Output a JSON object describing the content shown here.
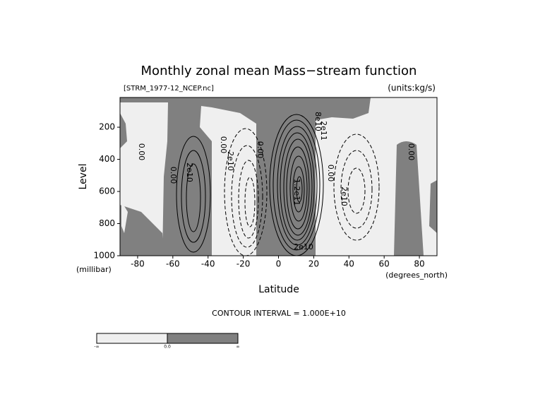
{
  "chart_data": {
    "type": "contour",
    "title": "Monthly zonal mean Mass−stream function",
    "subtitle_left": "[STRM_1977-12_NCEP.nc]",
    "subtitle_right": "(units:kg/s)",
    "x_label": "Latitude",
    "x_unit": "(degrees_north)",
    "y_label": "Level",
    "y_unit": "(millibar)",
    "xlim": [
      -90,
      90
    ],
    "xticks": [
      -80,
      -60,
      -40,
      -20,
      0,
      20,
      40,
      60,
      80
    ],
    "ylim": [
      1000,
      15
    ],
    "yticks": [
      200,
      400,
      600,
      800,
      1000
    ],
    "contour_labels": [
      "0.00",
      "0.00",
      "2e10",
      "0.00",
      "2e10",
      "0.00",
      "2e11",
      "8e10",
      "1.2e11",
      "0.00",
      "2e10",
      "0.00",
      "2e10"
    ],
    "note": "CONTOUR INTERVAL = 1.000E+10",
    "colorbar_labels": [
      "-∞",
      "0.0",
      "∞"
    ],
    "colors": {
      "negative": "#efefef",
      "positive": "#808080"
    }
  }
}
